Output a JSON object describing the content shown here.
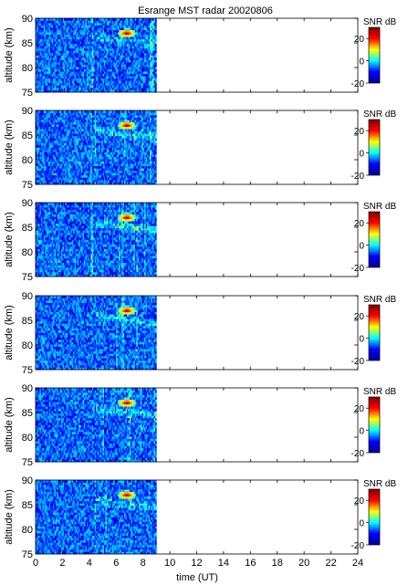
{
  "chart_data": {
    "type": "heatmap",
    "title": "Esrange MST radar 20020806",
    "xlabel": "time (UT)",
    "ylabel": "altitude (km)",
    "xlim": [
      0,
      24
    ],
    "ylim": [
      75,
      90
    ],
    "xticks": [
      0,
      2,
      4,
      6,
      8,
      10,
      12,
      14,
      16,
      18,
      20,
      22,
      24
    ],
    "yticks": [
      75,
      80,
      85,
      90
    ],
    "data_time_range": [
      0,
      9
    ],
    "panel_count": 6,
    "colorbar": {
      "label": "SNR dB",
      "range": [
        -20,
        30
      ],
      "ticks": [
        -20,
        0,
        20
      ],
      "colors": [
        "#00008f",
        "#0000ff",
        "#00ffff",
        "#ffff00",
        "#ff0000",
        "#800000"
      ]
    },
    "echo_layer": {
      "time_range": [
        4.5,
        9
      ],
      "altitude_start": 86,
      "altitude_end": 84.5,
      "peak_time": 6.8,
      "peak_altitude": 87,
      "peak_snr_db": 30
    }
  }
}
